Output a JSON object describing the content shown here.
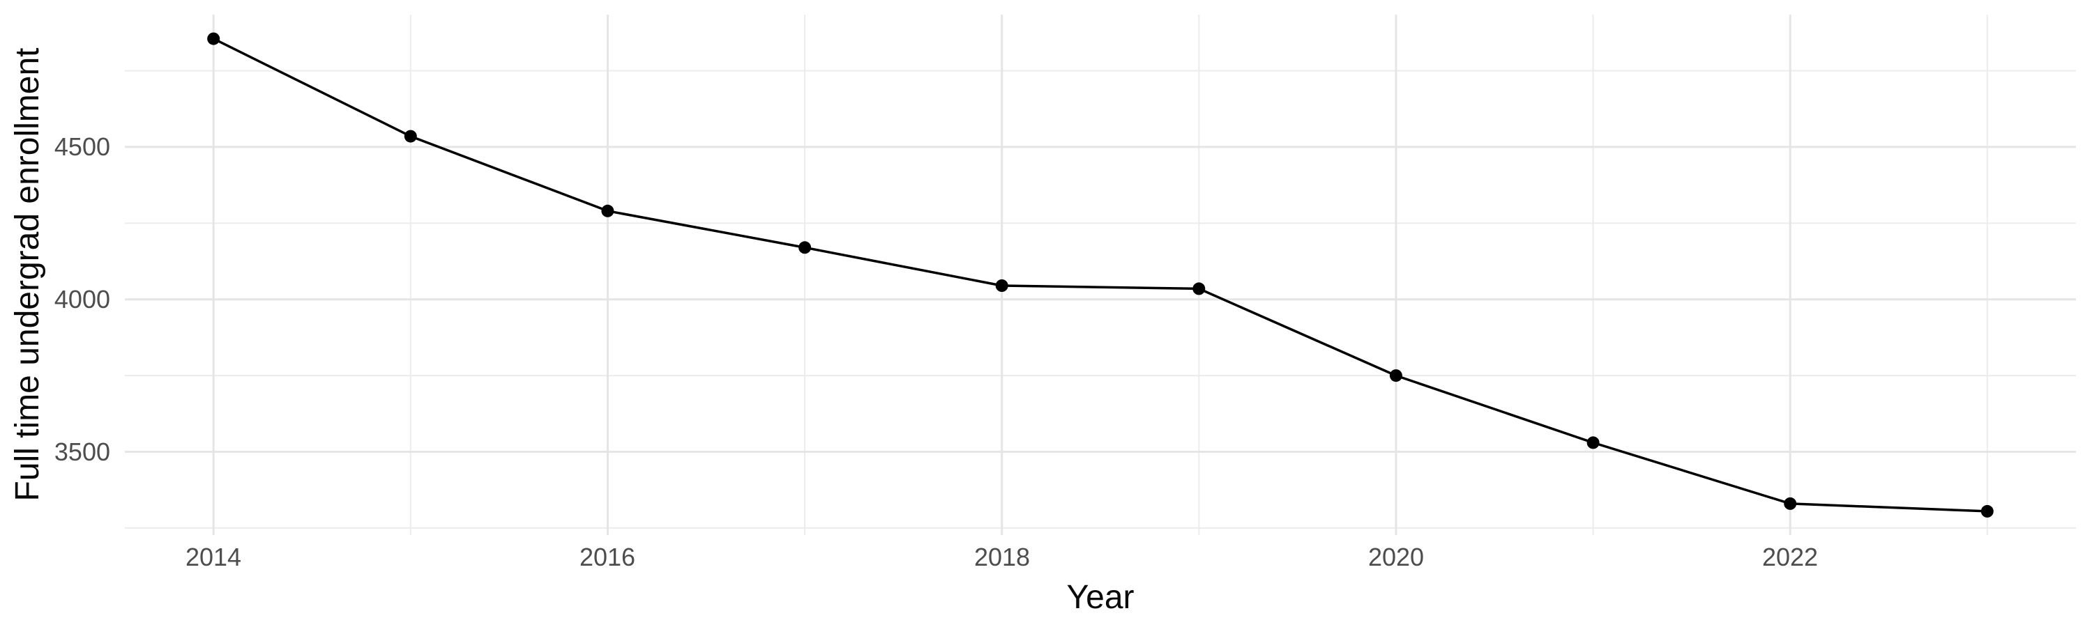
{
  "chart_data": {
    "type": "line",
    "title": "",
    "xlabel": "Year",
    "ylabel": "Full time undergrad enrollment",
    "x": [
      2014,
      2015,
      2016,
      2017,
      2018,
      2019,
      2020,
      2021,
      2022,
      2023
    ],
    "series": [
      {
        "name": "Full time undergrad enrollment",
        "values": [
          4855,
          4535,
          4290,
          4170,
          4045,
          4035,
          3750,
          3530,
          3330,
          3305
        ]
      }
    ],
    "xlim": [
      2013.55,
      2023.45
    ],
    "ylim": [
      3227,
      4934
    ],
    "x_ticks_major": {
      "values": [
        2014,
        2016,
        2018,
        2020,
        2022
      ],
      "labels": [
        "2014",
        "2016",
        "2018",
        "2020",
        "2022"
      ]
    },
    "x_ticks_minor": [
      2015,
      2017,
      2019,
      2021,
      2023
    ],
    "y_ticks_major": {
      "values": [
        4500,
        4000,
        3500
      ],
      "labels": [
        "4500",
        "4000",
        "3500"
      ]
    },
    "y_ticks_minor": [
      4750,
      4250,
      3750,
      3250
    ],
    "grid": "major-and-minor",
    "legend": "none",
    "colors": {
      "line": "#000000",
      "marker": "#000000",
      "grid_major": "#e5e5e5",
      "grid_minor": "#ececec",
      "tick_text": "#4d4d4d",
      "axis_title_text": "#0a0a0a",
      "background": "#ffffff"
    }
  }
}
